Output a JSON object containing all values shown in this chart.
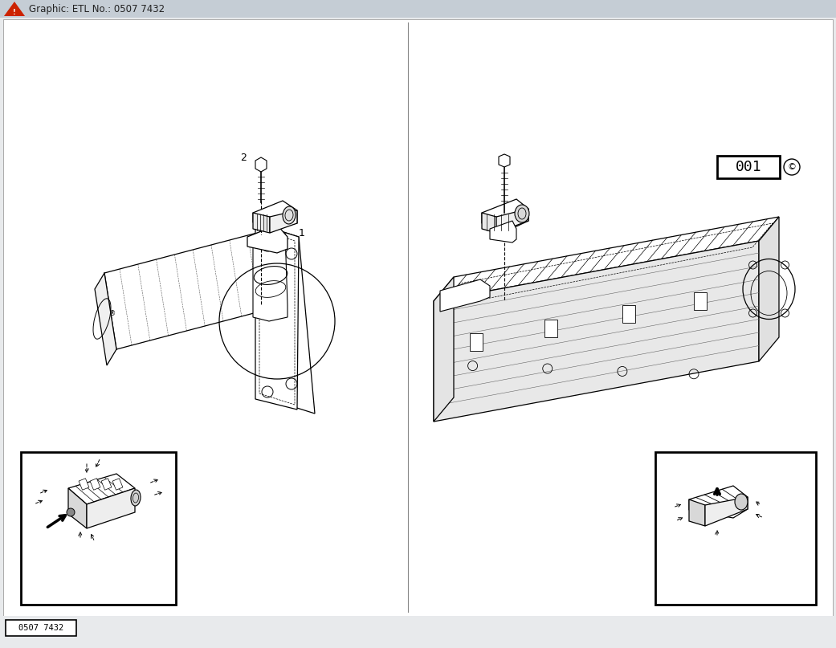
{
  "title": "Graphic: ETL No.: 0507 7432",
  "etl_number": "0507 7432",
  "part_number": "001",
  "copyright_symbol": "©",
  "bg_color": "#e8eaec",
  "content_bg": "#ffffff",
  "title_bar_color": "#c5cdd5",
  "border_color": "#000000",
  "label_1": "1",
  "label_2": "2"
}
